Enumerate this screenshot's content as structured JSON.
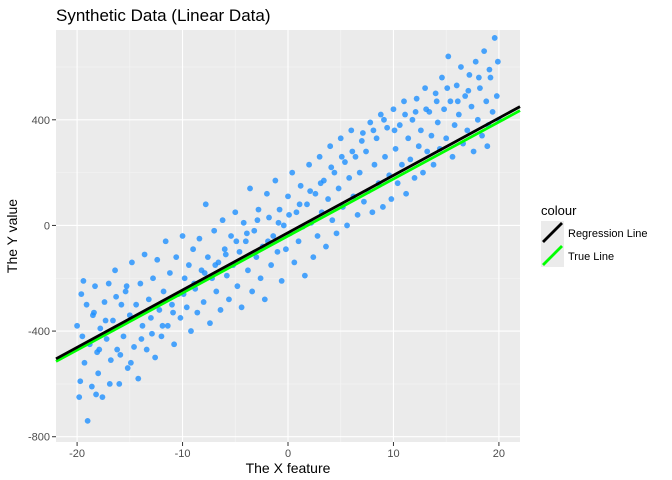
{
  "chart_data": {
    "type": "scatter",
    "title": "Synthetic Data (Linear Data)",
    "xlabel": "The X feature",
    "ylabel": "The Y value",
    "xlim": [
      -22,
      22
    ],
    "ylim": [
      -820,
      740
    ],
    "x_ticks": [
      -20,
      -10,
      0,
      10,
      20
    ],
    "y_ticks": [
      -800,
      -400,
      0,
      400
    ],
    "grid": true,
    "point_color": "#1e90ff",
    "points": [
      [
        -20.0,
        -380
      ],
      [
        -19.8,
        -650
      ],
      [
        -19.6,
        -260
      ],
      [
        -19.5,
        -420
      ],
      [
        -19.3,
        -520
      ],
      [
        -19.1,
        -300
      ],
      [
        -19.0,
        -740
      ],
      [
        -18.8,
        -450
      ],
      [
        -18.6,
        -610
      ],
      [
        -18.5,
        -340
      ],
      [
        -18.3,
        -230
      ],
      [
        -18.1,
        -480
      ],
      [
        -18.0,
        -560
      ],
      [
        -17.8,
        -390
      ],
      [
        -17.6,
        -650
      ],
      [
        -17.4,
        -290
      ],
      [
        -17.2,
        -430
      ],
      [
        -17.0,
        -220
      ],
      [
        -16.8,
        -510
      ],
      [
        -16.6,
        -360
      ],
      [
        -16.4,
        -170
      ],
      [
        -16.2,
        -470
      ],
      [
        -16.0,
        -600
      ],
      [
        -15.8,
        -300
      ],
      [
        -15.6,
        -420
      ],
      [
        -15.4,
        -250
      ],
      [
        -15.2,
        -540
      ],
      [
        -15.0,
        -340
      ],
      [
        -14.8,
        -140
      ],
      [
        -14.6,
        -460
      ],
      [
        -14.4,
        -300
      ],
      [
        -14.2,
        -580
      ],
      [
        -14.0,
        -220
      ],
      [
        -13.8,
        -380
      ],
      [
        -13.6,
        -110
      ],
      [
        -13.4,
        -470
      ],
      [
        -13.2,
        -280
      ],
      [
        -13.0,
        -350
      ],
      [
        -12.8,
        -200
      ],
      [
        -12.6,
        -500
      ],
      [
        -12.4,
        -130
      ],
      [
        -12.2,
        -320
      ],
      [
        -12.0,
        -420
      ],
      [
        -11.8,
        -250
      ],
      [
        -11.6,
        -60
      ],
      [
        -11.4,
        -380
      ],
      [
        -11.2,
        -180
      ],
      [
        -11.0,
        -300
      ],
      [
        -10.8,
        -450
      ],
      [
        -10.6,
        -120
      ],
      [
        -10.4,
        -260
      ],
      [
        -10.2,
        -350
      ],
      [
        -10.0,
        -40
      ],
      [
        -9.8,
        -200
      ],
      [
        -9.6,
        -310
      ],
      [
        -9.4,
        -150
      ],
      [
        -9.2,
        -400
      ],
      [
        -9.0,
        -90
      ],
      [
        -8.8,
        -240
      ],
      [
        -8.6,
        -330
      ],
      [
        -8.4,
        -50
      ],
      [
        -8.2,
        -170
      ],
      [
        -8.0,
        -290
      ],
      [
        -7.8,
        80
      ],
      [
        -7.6,
        -120
      ],
      [
        -7.4,
        -370
      ],
      [
        -7.2,
        -200
      ],
      [
        -7.0,
        -20
      ],
      [
        -6.8,
        -250
      ],
      [
        -6.6,
        -140
      ],
      [
        -6.4,
        -320
      ],
      [
        -6.2,
        20
      ],
      [
        -6.0,
        -90
      ],
      [
        -5.8,
        -190
      ],
      [
        -5.6,
        -280
      ],
      [
        -5.4,
        -40
      ],
      [
        -5.2,
        -150
      ],
      [
        -5.0,
        50
      ],
      [
        -4.8,
        -230
      ],
      [
        -4.6,
        -100
      ],
      [
        -4.4,
        -310
      ],
      [
        -4.2,
        10
      ],
      [
        -4.0,
        -60
      ],
      [
        -3.8,
        -170
      ],
      [
        -3.6,
        140
      ],
      [
        -3.4,
        -250
      ],
      [
        -3.2,
        -20
      ],
      [
        -3.0,
        -120
      ],
      [
        -2.8,
        60
      ],
      [
        -2.6,
        -200
      ],
      [
        -2.4,
        -80
      ],
      [
        -2.2,
        -280
      ],
      [
        -2.0,
        120
      ],
      [
        -1.8,
        30
      ],
      [
        -1.6,
        -150
      ],
      [
        -1.4,
        -40
      ],
      [
        -1.2,
        170
      ],
      [
        -1.0,
        -100
      ],
      [
        -0.8,
        60
      ],
      [
        -0.6,
        -210
      ],
      [
        -0.4,
        0
      ],
      [
        -0.2,
        -90
      ],
      [
        0.0,
        110
      ],
      [
        0.2,
        -30
      ],
      [
        0.4,
        200
      ],
      [
        0.6,
        -140
      ],
      [
        0.8,
        50
      ],
      [
        1.0,
        -60
      ],
      [
        1.2,
        150
      ],
      [
        1.4,
        -5
      ],
      [
        1.6,
        -190
      ],
      [
        1.8,
        80
      ],
      [
        2.0,
        230
      ],
      [
        2.2,
        10
      ],
      [
        2.4,
        -120
      ],
      [
        2.6,
        120
      ],
      [
        2.8,
        -40
      ],
      [
        3.0,
        260
      ],
      [
        3.2,
        50
      ],
      [
        3.4,
        170
      ],
      [
        3.6,
        -80
      ],
      [
        3.8,
        100
      ],
      [
        4.0,
        300
      ],
      [
        4.2,
        20
      ],
      [
        4.4,
        200
      ],
      [
        4.6,
        -30
      ],
      [
        4.8,
        140
      ],
      [
        5.0,
        330
      ],
      [
        5.2,
        70
      ],
      [
        5.4,
        240
      ],
      [
        5.6,
        0
      ],
      [
        5.8,
        180
      ],
      [
        6.0,
        360
      ],
      [
        6.2,
        110
      ],
      [
        6.4,
        260
      ],
      [
        6.6,
        40
      ],
      [
        6.8,
        200
      ],
      [
        7.0,
        320
      ],
      [
        7.2,
        90
      ],
      [
        7.4,
        280
      ],
      [
        7.6,
        130
      ],
      [
        7.8,
        390
      ],
      [
        8.0,
        50
      ],
      [
        8.2,
        230
      ],
      [
        8.4,
        330
      ],
      [
        8.6,
        160
      ],
      [
        8.8,
        420
      ],
      [
        9.0,
        70
      ],
      [
        9.2,
        260
      ],
      [
        9.4,
        370
      ],
      [
        9.6,
        190
      ],
      [
        9.8,
        100
      ],
      [
        10.0,
        440
      ],
      [
        10.2,
        290
      ],
      [
        10.4,
        160
      ],
      [
        10.6,
        380
      ],
      [
        10.8,
        230
      ],
      [
        11.0,
        470
      ],
      [
        11.2,
        120
      ],
      [
        11.4,
        330
      ],
      [
        11.6,
        250
      ],
      [
        11.8,
        400
      ],
      [
        12.0,
        180
      ],
      [
        12.2,
        480
      ],
      [
        12.4,
        300
      ],
      [
        12.6,
        360
      ],
      [
        12.8,
        200
      ],
      [
        13.0,
        520
      ],
      [
        13.2,
        280
      ],
      [
        13.4,
        430
      ],
      [
        13.6,
        340
      ],
      [
        13.8,
        230
      ],
      [
        14.0,
        500
      ],
      [
        14.2,
        390
      ],
      [
        14.4,
        290
      ],
      [
        14.6,
        560
      ],
      [
        14.8,
        440
      ],
      [
        15.0,
        330
      ],
      [
        15.2,
        640
      ],
      [
        15.4,
        470
      ],
      [
        15.6,
        260
      ],
      [
        15.8,
        380
      ],
      [
        16.0,
        530
      ],
      [
        16.2,
        420
      ],
      [
        16.4,
        600
      ],
      [
        16.6,
        310
      ],
      [
        16.8,
        490
      ],
      [
        17.0,
        360
      ],
      [
        17.2,
        570
      ],
      [
        17.4,
        450
      ],
      [
        17.6,
        280
      ],
      [
        17.8,
        620
      ],
      [
        18.0,
        400
      ],
      [
        18.2,
        520
      ],
      [
        18.4,
        340
      ],
      [
        18.6,
        660
      ],
      [
        18.8,
        470
      ],
      [
        19.0,
        380
      ],
      [
        19.2,
        560
      ],
      [
        19.4,
        430
      ],
      [
        19.6,
        710
      ],
      [
        19.8,
        490
      ],
      [
        20.0,
        400
      ],
      [
        19.9,
        620
      ],
      [
        18.9,
        300
      ],
      [
        -19.7,
        -590
      ],
      [
        -18.2,
        -640
      ],
      [
        -17.9,
        -470
      ],
      [
        -16.9,
        -600
      ],
      [
        -15.9,
        -490
      ],
      [
        -14.9,
        -520
      ],
      [
        -13.9,
        -430
      ],
      [
        -12.9,
        -410
      ],
      [
        -11.9,
        -380
      ],
      [
        -10.9,
        -330
      ],
      [
        -9.9,
        -260
      ],
      [
        -8.9,
        -220
      ],
      [
        -7.9,
        -180
      ],
      [
        -6.9,
        -150
      ],
      [
        -5.9,
        -110
      ],
      [
        -4.9,
        -60
      ],
      [
        -3.9,
        -30
      ],
      [
        -2.9,
        20
      ],
      [
        -1.9,
        -60
      ],
      [
        -0.9,
        10
      ],
      [
        0.1,
        40
      ],
      [
        1.1,
        80
      ],
      [
        2.1,
        130
      ],
      [
        3.1,
        160
      ],
      [
        4.1,
        220
      ],
      [
        5.1,
        260
      ],
      [
        6.1,
        280
      ],
      [
        7.1,
        350
      ],
      [
        8.1,
        360
      ],
      [
        9.1,
        400
      ],
      [
        10.1,
        360
      ],
      [
        11.1,
        420
      ],
      [
        12.1,
        430
      ],
      [
        13.1,
        440
      ],
      [
        14.1,
        470
      ],
      [
        15.1,
        520
      ],
      [
        16.1,
        470
      ],
      [
        17.1,
        510
      ],
      [
        18.1,
        560
      ],
      [
        19.1,
        590
      ],
      [
        -19.4,
        -210
      ],
      [
        -18.4,
        -330
      ],
      [
        -17.3,
        -360
      ],
      [
        -16.3,
        -270
      ],
      [
        -15.3,
        -230
      ]
    ],
    "series": [
      {
        "name": "Regression Line",
        "color": "#000000",
        "x": [
          -22,
          22
        ],
        "y": [
          -505,
          450
        ]
      },
      {
        "name": "True Line",
        "color": "#00ff00",
        "x": [
          -22,
          22
        ],
        "y": [
          -515,
          435
        ]
      }
    ],
    "legend": {
      "title": "colour",
      "position": "right"
    }
  }
}
